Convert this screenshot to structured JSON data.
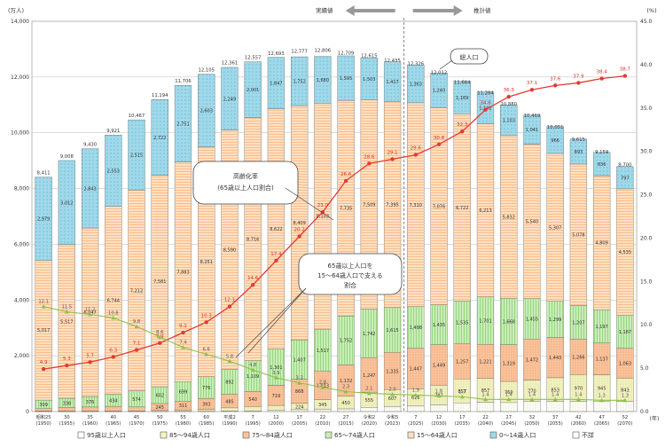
{
  "chart_data": {
    "type": "bar",
    "left_unit": "(万人)",
    "right_unit": "(%)",
    "x_unit": "(年)",
    "actual_label": "実績値",
    "projection_label": "推計値",
    "ylim": [
      0,
      14000
    ],
    "y2lim": [
      0,
      45
    ],
    "left_ticks": [
      "0",
      "2,000",
      "4,000",
      "6,000",
      "8,000",
      "10,000",
      "12,000",
      "14,000"
    ],
    "right_ticks": [
      "0.0",
      "5.0",
      "10.0",
      "15.0",
      "20.0",
      "25.0",
      "30.0",
      "35.0",
      "40.0",
      "45.0"
    ],
    "categories": [
      [
        "昭和25",
        "(1950)"
      ],
      [
        "30",
        "(1955)"
      ],
      [
        "35",
        "(1960)"
      ],
      [
        "40",
        "(1965)"
      ],
      [
        "45",
        "(1970)"
      ],
      [
        "50",
        "(1975)"
      ],
      [
        "55",
        "(1980)"
      ],
      [
        "60",
        "(1985)"
      ],
      [
        "平成2",
        "(1990)"
      ],
      [
        "7",
        "(1995)"
      ],
      [
        "12",
        "(2000)"
      ],
      [
        "17",
        "(2005)"
      ],
      [
        "22",
        "(2010)"
      ],
      [
        "27",
        "(2015)"
      ],
      [
        "令和2",
        "(2020)"
      ],
      [
        "令和5",
        "(2023)"
      ],
      [
        "7",
        "(2025)"
      ],
      [
        "12",
        "(2030)"
      ],
      [
        "17",
        "(2035)"
      ],
      [
        "22",
        "(2040)"
      ],
      [
        "27",
        "(2045)"
      ],
      [
        "32",
        "(2050)"
      ],
      [
        "37",
        "(2055)"
      ],
      [
        "42",
        "(2060)"
      ],
      [
        "47",
        "(2065)"
      ],
      [
        "52",
        "(2070)"
      ]
    ],
    "totals": [
      8411,
      9008,
      9430,
      9921,
      10467,
      11194,
      11706,
      12105,
      12361,
      12557,
      12693,
      12777,
      12806,
      12709,
      12615,
      12435,
      12326,
      12012,
      11664,
      11284,
      10880,
      10469,
      10051,
      9615,
      9159,
      8700
    ],
    "series": [
      {
        "name": "0〜14歳人口",
        "color": "#9fd9ea",
        "pattern": "dots",
        "values": [
          2979,
          3012,
          2843,
          2553,
          2515,
          2722,
          2751,
          2603,
          2249,
          2001,
          1847,
          1752,
          1680,
          1595,
          1503,
          1417,
          1363,
          1240,
          1169,
          1142,
          1103,
          1041,
          966,
          893,
          836,
          797
        ]
      },
      {
        "name": "15〜64歳人口",
        "color": "#fde0c4",
        "pattern": "hlines",
        "values": [
          5017,
          5517,
          6047,
          6744,
          7212,
          7581,
          7883,
          8251,
          8590,
          8716,
          8622,
          8409,
          8103,
          7735,
          7509,
          7395,
          7310,
          7076,
          6722,
          6213,
          5832,
          5540,
          5307,
          5078,
          4809,
          4535
        ]
      },
      {
        "name": "65〜74歳人口",
        "color": "#c8edb6",
        "pattern": "vlines",
        "values": [
          309,
          338,
          376,
          434,
          574,
          602,
          699,
          776,
          892,
          1109,
          1301,
          1407,
          1517,
          1752,
          1742,
          1615,
          1498,
          1435,
          1535,
          1701,
          1668,
          1455,
          1299,
          1207,
          1197,
          1187
        ]
      },
      {
        "name": "75〜84歳人口",
        "color": "#fdc39b",
        "pattern": "dots",
        "values": [
          86,
          121,
          143,
          163,
          141,
          245,
          311,
          393,
          485,
          540,
          719,
          868,
          1013,
          1132,
          1247,
          1335,
          1447,
          1449,
          1257,
          1221,
          1319,
          1472,
          1443,
          1266,
          1137,
          1063
        ]
      },
      {
        "name": "85〜94歳人口",
        "color": "#f3f3c2",
        "pattern": "dots",
        "values": [
          15,
          17,
          19,
          22,
          21,
          40,
          56,
          72,
          116,
          155,
          179,
          224,
          345,
          450,
          555,
          607,
          626,
          707,
          857,
          857,
          760,
          770,
          853,
          970,
          945,
          843
        ]
      },
      {
        "name": "95歳以上人口",
        "color": "#ffffff",
        "pattern": "dots",
        "values": [
          1,
          1,
          1,
          2,
          2,
          3,
          5,
          8,
          15,
          27,
          41,
          67,
          83,
          96,
          134,
          179,
          195,
          242,
          310,
          334,
          321,
          356,
          359,
          358,
          375,
          362
        ]
      }
    ],
    "series_extra_legend": [
      "不詳"
    ],
    "extra_legend_color": "#ffffff",
    "line_aging_rate": {
      "name": "高齢化率(65歳以上人口割合)",
      "label_line1": "高齢化率",
      "label_line2": "(65歳以上人口割合)",
      "color": "#e53935",
      "values": [
        4.9,
        5.3,
        5.7,
        6.3,
        7.1,
        7.9,
        9.1,
        10.3,
        12.1,
        14.6,
        17.4,
        20.2,
        23.0,
        26.6,
        28.6,
        29.1,
        29.6,
        30.8,
        32.3,
        34.8,
        36.3,
        37.1,
        37.6,
        37.9,
        38.4,
        38.7
      ]
    },
    "line_support_ratio": {
      "name": "65歳以上人口を15〜64歳人口で支える割合",
      "label_line1": "65歳以上人口を",
      "label_line2": "15〜64歳人口で支える",
      "label_line3": "割合",
      "color": "#8bc34a",
      "values": [
        12.1,
        11.5,
        11.2,
        10.8,
        9.8,
        8.6,
        7.4,
        6.6,
        5.8,
        4.8,
        3.9,
        3.3,
        2.8,
        2.3,
        2.1,
        2.0,
        1.9,
        1.8,
        1.7,
        1.4,
        1.4,
        1.4,
        1.4,
        1.4,
        1.3,
        1.3
      ]
    },
    "total_label": "総人口",
    "legend": [
      {
        "name": "95歳以上人口",
        "color": "#ffffff"
      },
      {
        "name": "85〜94歳人口",
        "color": "#f3f3c2"
      },
      {
        "name": "75〜84歳人口",
        "color": "#fdc39b"
      },
      {
        "name": "65〜74歳人口",
        "color": "#c8edb6"
      },
      {
        "name": "15〜64歳人口",
        "color": "#fde0c4"
      },
      {
        "name": "0〜14歳人口",
        "color": "#9fd9ea"
      },
      {
        "name": "不詳",
        "color": "#ffffff"
      }
    ],
    "grid": true,
    "legend_placement": "bottom"
  }
}
